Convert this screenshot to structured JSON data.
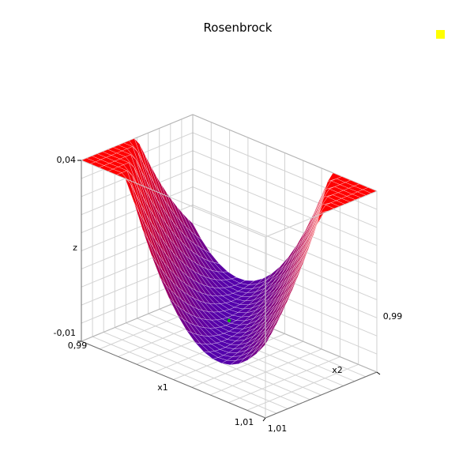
{
  "chart_data": {
    "type": "surface3d",
    "title": "Rosenbrock",
    "function": "z = (1 - x1)^2 + 100 * (x2 - x1^2)^2",
    "x1": {
      "label": "x1",
      "range": [
        0.99,
        1.01
      ],
      "ticks": [
        "0,99",
        "1,01"
      ]
    },
    "x2": {
      "label": "x2",
      "range": [
        0.99,
        1.01
      ],
      "ticks": [
        "0,99",
        "1,01"
      ]
    },
    "z": {
      "label": "z",
      "range": [
        -0.01,
        0.04
      ],
      "ticks": [
        "-0,01",
        "0,04"
      ]
    },
    "grid": true,
    "colormap": {
      "low": "#0000ff",
      "high": "#ff0000"
    },
    "mesh_color": "#ffffff",
    "legend_marker_color": "#ffff00",
    "minimum_marker_color": "#00b000",
    "minimum_point": {
      "x1": 1.0,
      "x2": 1.0,
      "z": 0.0
    },
    "samples": 21
  }
}
